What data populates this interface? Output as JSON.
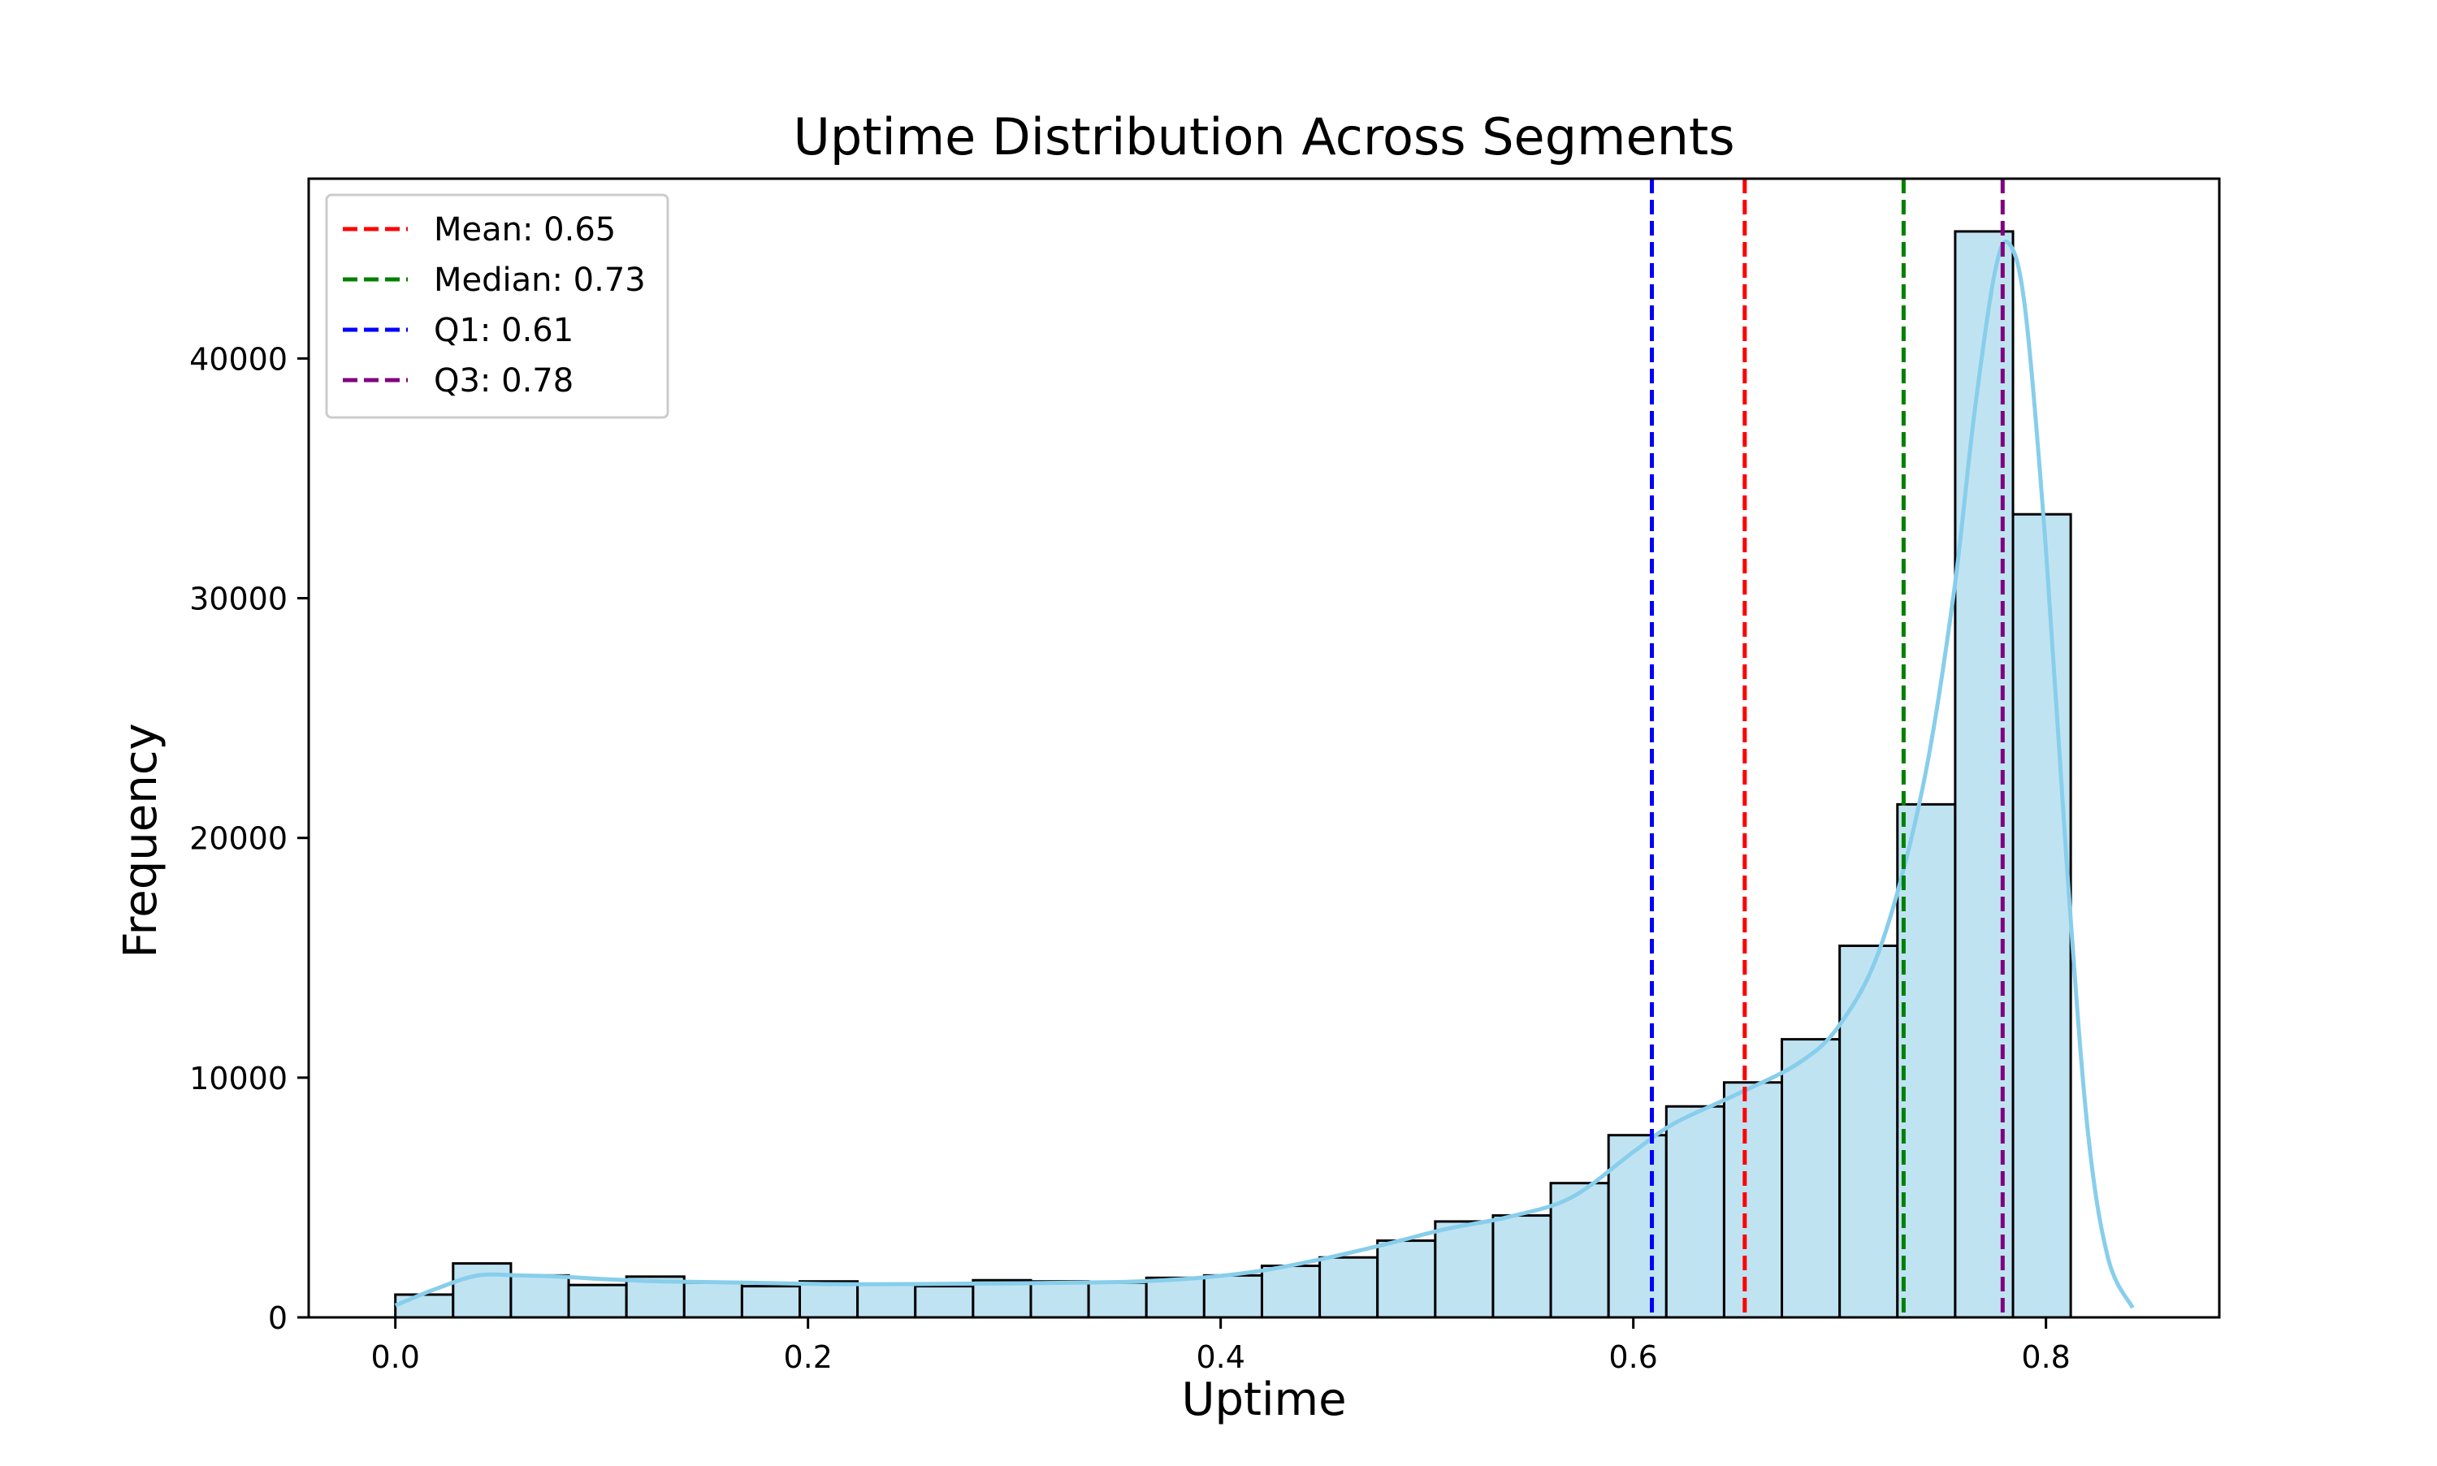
{
  "chart_data": {
    "type": "bar",
    "title": "Uptime Distribution Across Segments",
    "xlabel": "Uptime",
    "ylabel": "Frequency",
    "xlim": [
      -0.042,
      0.884
    ],
    "ylim": [
      0,
      47500
    ],
    "xticks": [
      0.0,
      0.2,
      0.4,
      0.6,
      0.8
    ],
    "xtick_labels": [
      "0.0",
      "0.2",
      "0.4",
      "0.6",
      "0.8"
    ],
    "yticks": [
      0,
      10000,
      20000,
      30000,
      40000
    ],
    "ytick_labels": [
      "0",
      "10000",
      "20000",
      "30000",
      "40000"
    ],
    "grid": false,
    "legend_position": "top-left",
    "bar_fill": "#c0e3f2",
    "bar_edge": "#000000",
    "bins": [
      [
        0.0,
        0.028,
        950
      ],
      [
        0.028,
        0.056,
        2250
      ],
      [
        0.056,
        0.084,
        1750
      ],
      [
        0.084,
        0.112,
        1350
      ],
      [
        0.112,
        0.14,
        1700
      ],
      [
        0.14,
        0.168,
        1450
      ],
      [
        0.168,
        0.196,
        1300
      ],
      [
        0.196,
        0.224,
        1500
      ],
      [
        0.224,
        0.252,
        1400
      ],
      [
        0.252,
        0.28,
        1300
      ],
      [
        0.28,
        0.308,
        1550
      ],
      [
        0.308,
        0.336,
        1500
      ],
      [
        0.336,
        0.364,
        1450
      ],
      [
        0.364,
        0.392,
        1650
      ],
      [
        0.392,
        0.42,
        1750
      ],
      [
        0.42,
        0.448,
        2150
      ],
      [
        0.448,
        0.476,
        2500
      ],
      [
        0.476,
        0.504,
        3200
      ],
      [
        0.504,
        0.532,
        4000
      ],
      [
        0.532,
        0.56,
        4250
      ],
      [
        0.56,
        0.588,
        5600
      ],
      [
        0.588,
        0.616,
        7600
      ],
      [
        0.616,
        0.644,
        8800
      ],
      [
        0.644,
        0.672,
        9800
      ],
      [
        0.672,
        0.7,
        11600
      ],
      [
        0.7,
        0.728,
        15500
      ],
      [
        0.728,
        0.756,
        21400
      ],
      [
        0.756,
        0.784,
        45300
      ],
      [
        0.784,
        0.812,
        33500
      ]
    ],
    "kde": {
      "color": "#87ceeb",
      "points": [
        [
          0.0,
          500
        ],
        [
          0.02,
          1200
        ],
        [
          0.04,
          1750
        ],
        [
          0.06,
          1750
        ],
        [
          0.08,
          1700
        ],
        [
          0.1,
          1600
        ],
        [
          0.13,
          1500
        ],
        [
          0.17,
          1450
        ],
        [
          0.2,
          1400
        ],
        [
          0.23,
          1380
        ],
        [
          0.27,
          1400
        ],
        [
          0.3,
          1420
        ],
        [
          0.33,
          1450
        ],
        [
          0.36,
          1500
        ],
        [
          0.39,
          1650
        ],
        [
          0.42,
          1950
        ],
        [
          0.45,
          2450
        ],
        [
          0.48,
          3050
        ],
        [
          0.51,
          3700
        ],
        [
          0.54,
          4200
        ],
        [
          0.57,
          5000
        ],
        [
          0.6,
          6900
        ],
        [
          0.62,
          8100
        ],
        [
          0.65,
          9300
        ],
        [
          0.68,
          10600
        ],
        [
          0.7,
          12200
        ],
        [
          0.72,
          15500
        ],
        [
          0.74,
          22000
        ],
        [
          0.755,
          30000
        ],
        [
          0.765,
          37500
        ],
        [
          0.775,
          43500
        ],
        [
          0.782,
          44800
        ],
        [
          0.79,
          42000
        ],
        [
          0.8,
          32000
        ],
        [
          0.81,
          19000
        ],
        [
          0.82,
          8000
        ],
        [
          0.83,
          2500
        ],
        [
          0.842,
          400
        ]
      ]
    },
    "reference_lines": [
      {
        "label": "Mean: 0.65",
        "x": 0.654,
        "color": "#ff0000"
      },
      {
        "label": "Median: 0.73",
        "x": 0.731,
        "color": "#008000"
      },
      {
        "label": "Q1: 0.61",
        "x": 0.609,
        "color": "#0000ff"
      },
      {
        "label": "Q3: 0.78",
        "x": 0.779,
        "color": "#800080"
      }
    ]
  }
}
